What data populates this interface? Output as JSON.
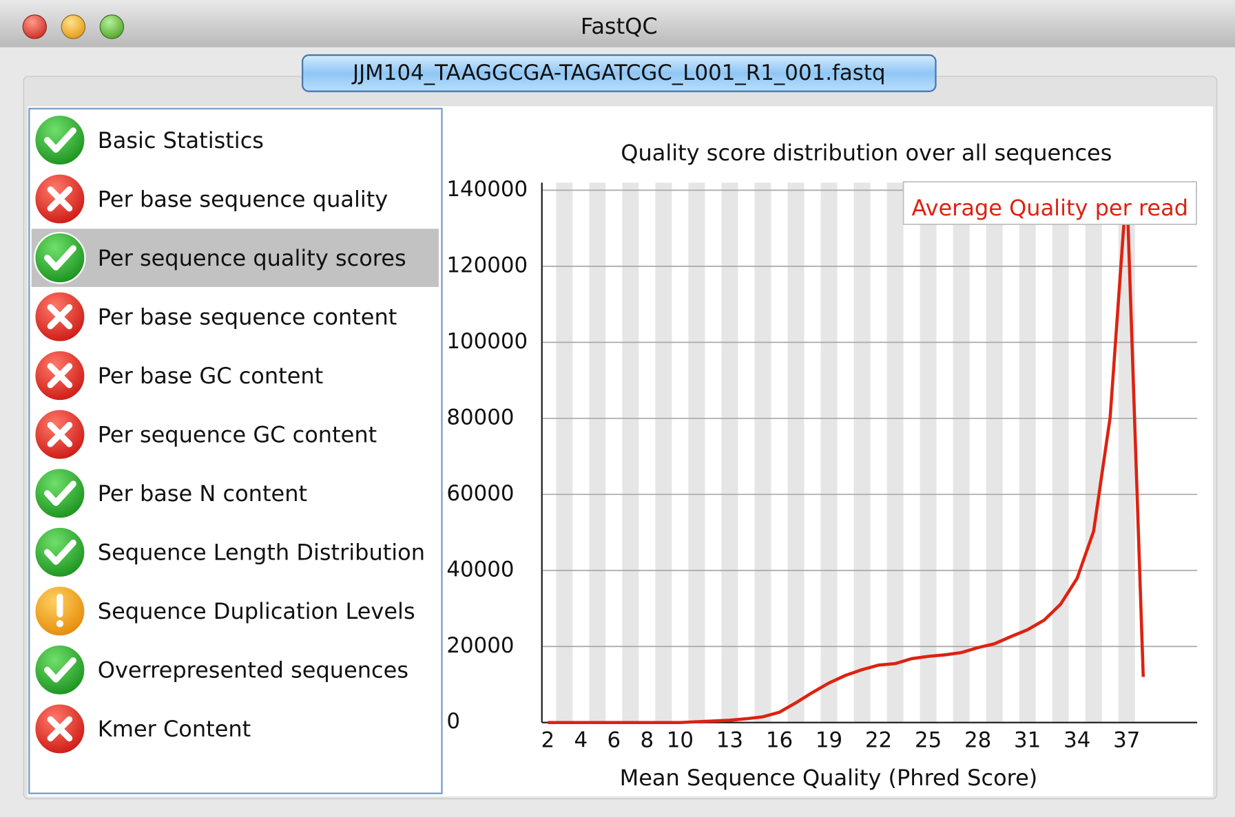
{
  "window": {
    "title": "FastQC"
  },
  "tab": {
    "label": "JJM104_TAAGGCGA-TAGATCGC_L001_R1_001.fastq"
  },
  "modules": [
    {
      "label": "Basic Statistics",
      "status": "pass"
    },
    {
      "label": "Per base sequence quality",
      "status": "fail"
    },
    {
      "label": "Per sequence quality scores",
      "status": "pass",
      "selected": true
    },
    {
      "label": "Per base sequence content",
      "status": "fail"
    },
    {
      "label": "Per base GC content",
      "status": "fail"
    },
    {
      "label": "Per sequence GC content",
      "status": "fail"
    },
    {
      "label": "Per base N content",
      "status": "pass"
    },
    {
      "label": "Sequence Length Distribution",
      "status": "pass"
    },
    {
      "label": "Sequence Duplication Levels",
      "status": "warn"
    },
    {
      "label": "Overrepresented sequences",
      "status": "pass"
    },
    {
      "label": "Kmer Content",
      "status": "fail"
    }
  ],
  "chart_data": {
    "type": "line",
    "title": "Quality score distribution over all sequences",
    "x_label": "Mean Sequence Quality (Phred Score)",
    "x": [
      2,
      3,
      4,
      5,
      6,
      7,
      8,
      9,
      10,
      11,
      12,
      13,
      14,
      15,
      16,
      17,
      18,
      19,
      20,
      21,
      22,
      23,
      24,
      25,
      26,
      27,
      28,
      29,
      30,
      31,
      32,
      33,
      34,
      35,
      36,
      37,
      38
    ],
    "series": [
      {
        "name": "Average Quality per read",
        "color": "#dd2211",
        "values": [
          0,
          0,
          0,
          0,
          0,
          0,
          0,
          0,
          0,
          200,
          400,
          600,
          1000,
          1500,
          2700,
          5200,
          7900,
          10400,
          12400,
          13900,
          15100,
          15500,
          16800,
          17400,
          17800,
          18400,
          19700,
          20700,
          22600,
          24400,
          26900,
          31100,
          37900,
          50300,
          80300,
          141500,
          12000
        ]
      }
    ],
    "xlim": [
      1.5,
      41.5
    ],
    "xticks": [
      2,
      4,
      6,
      8,
      10,
      13,
      16,
      19,
      22,
      25,
      28,
      31,
      34,
      37
    ],
    "ylim": [
      0,
      142000
    ],
    "yticks": [
      0,
      20000,
      40000,
      60000,
      80000,
      100000,
      120000,
      140000
    ],
    "grid": true,
    "legend": "upper right"
  }
}
